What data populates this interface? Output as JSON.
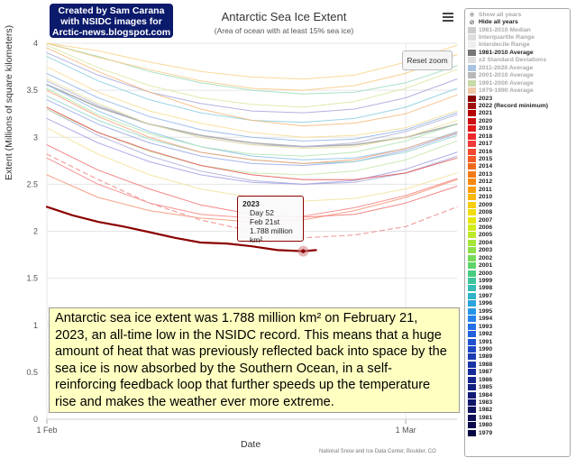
{
  "header": {
    "credit_lines": [
      "Created by Sam Carana",
      "with NSIDC images for",
      "Arctic-news.blogspot.com"
    ],
    "title": "Antarctic Sea Ice Extent",
    "subtitle": "(Area of ocean with at least 15% sea ice)",
    "menu_icon": "hamburger-menu-icon",
    "reset_zoom": "Reset zoom"
  },
  "tooltip": {
    "year": "2023",
    "day": "Day 52",
    "date": "Feb 21st",
    "value": "1.788 million km²"
  },
  "annotation": "Antarctic sea ice extent was 1.788 million km² on February 21, 2023, an all-time low in the NSIDC record. This means that a huge amount of heat that was previously reflected back into space by the sea ice is now absorbed by the Southern Ocean, in a self-reinforcing feedback loop that further speeds up the temperature rise and makes the weather ever more extreme.",
  "source": "National Snow and Ice Data Center, Boulder, CO",
  "legend": {
    "items": [
      {
        "label": "Show all years",
        "icon": "eye-icon",
        "color": "#aaaaaa",
        "dim": true
      },
      {
        "label": "Hide all years",
        "icon": "eye-slash-icon",
        "color": "#222222",
        "dim": false
      },
      {
        "label": "1981-2010 Median",
        "color": "#cccccc",
        "dim": true
      },
      {
        "label": "Interquartile Range",
        "color": "#dddddd",
        "dim": true
      },
      {
        "label": "Interdecile Range",
        "color": "#eeeeee",
        "dim": true
      },
      {
        "label": "1981-2010 Average",
        "color": "#777777",
        "dim": false
      },
      {
        "label": "±2 Standard Deviations",
        "color": "#dddddd",
        "dim": true
      },
      {
        "label": "2011-2020 Average",
        "color": "#a9c4e0",
        "dim": true
      },
      {
        "label": "2001-2010 Average",
        "color": "#b9b9b9",
        "dim": true
      },
      {
        "label": "1991-2000 Average",
        "color": "#c9d9a9",
        "dim": true
      },
      {
        "label": "1979-1990 Average",
        "color": "#f0c8a8",
        "dim": true
      },
      {
        "label": "2023",
        "color": "#8b0000",
        "dim": false
      },
      {
        "label": "2022 (Record minimum)",
        "color": "#9e1010",
        "dim": false
      },
      {
        "label": "2021",
        "color": "#b40000",
        "dim": false
      },
      {
        "label": "2020",
        "color": "#cc1010",
        "dim": false
      },
      {
        "label": "2019",
        "color": "#e01818",
        "dim": false
      },
      {
        "label": "2018",
        "color": "#ee2a2a",
        "dim": false
      },
      {
        "label": "2017",
        "color": "#f23a3a",
        "dim": false
      },
      {
        "label": "2016",
        "color": "#f24a30",
        "dim": false
      },
      {
        "label": "2015",
        "color": "#f25a28",
        "dim": false
      },
      {
        "label": "2014",
        "color": "#f26a20",
        "dim": false
      },
      {
        "label": "2013",
        "color": "#f47a18",
        "dim": false
      },
      {
        "label": "2012",
        "color": "#f68a10",
        "dim": false
      },
      {
        "label": "2011",
        "color": "#f8a010",
        "dim": false
      },
      {
        "label": "2010",
        "color": "#f8b810",
        "dim": false
      },
      {
        "label": "2009",
        "color": "#f8cc10",
        "dim": false
      },
      {
        "label": "2008",
        "color": "#f0dc10",
        "dim": false
      },
      {
        "label": "2007",
        "color": "#e6e810",
        "dim": false
      },
      {
        "label": "2006",
        "color": "#d2ec1a",
        "dim": false
      },
      {
        "label": "2005",
        "color": "#bcea2a",
        "dim": false
      },
      {
        "label": "2004",
        "color": "#a6e63a",
        "dim": false
      },
      {
        "label": "2003",
        "color": "#8ee04a",
        "dim": false
      },
      {
        "label": "2002",
        "color": "#76da5a",
        "dim": false
      },
      {
        "label": "2001",
        "color": "#5ed46a",
        "dim": false
      },
      {
        "label": "2000",
        "color": "#48cc80",
        "dim": false
      },
      {
        "label": "1999",
        "color": "#3ec49a",
        "dim": false
      },
      {
        "label": "1998",
        "color": "#36bcb2",
        "dim": false
      },
      {
        "label": "1997",
        "color": "#30b2c8",
        "dim": false
      },
      {
        "label": "1996",
        "color": "#2aa4dc",
        "dim": false
      },
      {
        "label": "1995",
        "color": "#2894e8",
        "dim": false
      },
      {
        "label": "1994",
        "color": "#2682ea",
        "dim": false
      },
      {
        "label": "1993",
        "color": "#2470e4",
        "dim": false
      },
      {
        "label": "1992",
        "color": "#2260dc",
        "dim": false
      },
      {
        "label": "1991",
        "color": "#2052d0",
        "dim": false
      },
      {
        "label": "1990",
        "color": "#1e46c2",
        "dim": false
      },
      {
        "label": "1989",
        "color": "#1c3cb4",
        "dim": false
      },
      {
        "label": "1988",
        "color": "#1a34a6",
        "dim": false
      },
      {
        "label": "1987",
        "color": "#182c98",
        "dim": false
      },
      {
        "label": "1986",
        "color": "#16268c",
        "dim": false
      },
      {
        "label": "1985",
        "color": "#142080",
        "dim": false
      },
      {
        "label": "1984",
        "color": "#121a74",
        "dim": false
      },
      {
        "label": "1983",
        "color": "#10166a",
        "dim": false
      },
      {
        "label": "1982",
        "color": "#0e1260",
        "dim": false
      },
      {
        "label": "1981",
        "color": "#0c0e56",
        "dim": false
      },
      {
        "label": "1980",
        "color": "#0a0a4c",
        "dim": false
      },
      {
        "label": "1979",
        "color": "#080842",
        "dim": false
      }
    ]
  },
  "chart_data": {
    "type": "line",
    "title": "Antarctic Sea Ice Extent",
    "subtitle": "(Area of ocean with at least 15% sea ice)",
    "xlabel": "Date",
    "ylabel": "Extent (Millions of square kilometers)",
    "xlim": [
      32,
      64
    ],
    "ylim": [
      0,
      4
    ],
    "y_ticks": [
      0,
      0.5,
      1,
      1.5,
      2,
      2.5,
      3,
      3.5,
      4
    ],
    "x_ticks": [
      {
        "day": 32,
        "label": "1 Feb"
      },
      {
        "day": 60,
        "label": "1 Mar"
      }
    ],
    "grid": true,
    "legend_position": "right",
    "series": [
      {
        "name": "2023",
        "color": "#8b0000",
        "width": 2.2,
        "x": [
          32,
          34,
          36,
          38,
          40,
          42,
          44,
          46,
          48,
          50,
          52,
          53
        ],
        "values": [
          2.26,
          2.17,
          2.1,
          2.05,
          1.99,
          1.93,
          1.88,
          1.87,
          1.84,
          1.8,
          1.788,
          1.8
        ]
      },
      {
        "name": "2022 (Record minimum)",
        "color": "#f2a0a0",
        "dashed": true,
        "width": 1.2,
        "x": [
          32,
          36,
          40,
          44,
          48,
          52,
          56,
          60,
          64
        ],
        "values": [
          2.82,
          2.55,
          2.3,
          2.12,
          2.0,
          1.93,
          1.96,
          2.05,
          2.26
        ]
      },
      {
        "name": "2021",
        "color": "#e05050",
        "x": [
          32,
          36,
          40,
          44,
          48,
          52,
          56,
          60,
          64
        ],
        "values": [
          3.32,
          3.05,
          2.86,
          2.7,
          2.6,
          2.55,
          2.55,
          2.62,
          2.78
        ]
      },
      {
        "name": "2019",
        "color": "#f07070",
        "x": [
          32,
          36,
          40,
          44,
          48,
          52,
          56,
          60,
          64
        ],
        "values": [
          2.92,
          2.65,
          2.45,
          2.28,
          2.18,
          2.15,
          2.18,
          2.3,
          2.48
        ]
      },
      {
        "name": "2018",
        "color": "#f48080",
        "x": [
          32,
          36,
          40,
          44,
          48,
          52,
          56,
          60,
          64
        ],
        "values": [
          2.78,
          2.5,
          2.3,
          2.18,
          2.14,
          2.16,
          2.25,
          2.38,
          2.56
        ]
      },
      {
        "name": "2017",
        "color": "#f29070",
        "x": [
          32,
          36,
          40,
          44,
          48,
          52,
          56,
          60,
          64
        ],
        "values": [
          2.6,
          2.36,
          2.22,
          2.14,
          2.1,
          2.12,
          2.22,
          2.36,
          2.55
        ]
      },
      {
        "name": "2016",
        "color": "#f4a070",
        "x": [
          32,
          36,
          40,
          44,
          48,
          52,
          56,
          60,
          64
        ],
        "values": [
          3.5,
          3.22,
          3.0,
          2.84,
          2.76,
          2.72,
          2.76,
          2.88,
          3.05
        ]
      },
      {
        "name": "2015",
        "color": "#f6b878",
        "x": [
          32,
          36,
          40,
          44,
          48,
          52,
          56,
          60,
          64
        ],
        "values": [
          3.95,
          3.7,
          3.48,
          3.3,
          3.18,
          3.12,
          3.15,
          3.25,
          3.45
        ]
      },
      {
        "name": "2014",
        "color": "#f8c880",
        "x": [
          32,
          36,
          40,
          44,
          48,
          52,
          56,
          60,
          64
        ],
        "values": [
          4.0,
          3.85,
          3.72,
          3.6,
          3.52,
          3.5,
          3.55,
          3.68,
          3.88
        ]
      },
      {
        "name": "2013",
        "color": "#f8d488",
        "x": [
          32,
          36,
          40,
          44,
          48,
          52,
          56,
          60,
          64
        ],
        "values": [
          4.0,
          3.92,
          3.8,
          3.7,
          3.64,
          3.62,
          3.66,
          3.8,
          3.98
        ]
      },
      {
        "name": "2012",
        "color": "#f6dc90",
        "x": [
          32,
          36,
          40,
          44,
          48,
          52,
          56,
          60,
          64
        ],
        "values": [
          3.75,
          3.48,
          3.28,
          3.15,
          3.05,
          3.0,
          3.02,
          3.1,
          3.28
        ]
      },
      {
        "name": "2011",
        "color": "#f4e098",
        "x": [
          32,
          36,
          40,
          44,
          48,
          52,
          56,
          60,
          64
        ],
        "values": [
          3.1,
          2.82,
          2.6,
          2.45,
          2.36,
          2.32,
          2.35,
          2.45,
          2.62
        ]
      },
      {
        "name": "2010",
        "color": "#eae4a0",
        "x": [
          32,
          36,
          40,
          44,
          48,
          52,
          56,
          60,
          64
        ],
        "values": [
          3.62,
          3.36,
          3.14,
          3.0,
          2.92,
          2.88,
          2.9,
          3.0,
          3.18
        ]
      },
      {
        "name": "2008",
        "color": "#d8e8a0",
        "x": [
          32,
          36,
          40,
          44,
          48,
          52,
          56,
          60,
          64
        ],
        "values": [
          3.98,
          3.74,
          3.55,
          3.42,
          3.35,
          3.32,
          3.38,
          3.52,
          3.72
        ]
      },
      {
        "name": "2007",
        "color": "#c6e8a8",
        "x": [
          32,
          36,
          40,
          44,
          48,
          52,
          56,
          60,
          64
        ],
        "values": [
          3.3,
          3.05,
          2.85,
          2.7,
          2.62,
          2.6,
          2.64,
          2.76,
          2.96
        ]
      },
      {
        "name": "2005",
        "color": "#b0e4b0",
        "x": [
          32,
          36,
          40,
          44,
          48,
          52,
          56,
          60,
          64
        ],
        "values": [
          3.52,
          3.24,
          3.04,
          2.9,
          2.82,
          2.8,
          2.84,
          2.96,
          3.14
        ]
      },
      {
        "name": "2003",
        "color": "#9adcbc",
        "x": [
          32,
          36,
          40,
          44,
          48,
          52,
          56,
          60,
          64
        ],
        "values": [
          4.0,
          3.86,
          3.7,
          3.58,
          3.5,
          3.46,
          3.48,
          3.58,
          3.76
        ]
      },
      {
        "name": "2001",
        "color": "#8ed4c8",
        "x": [
          32,
          36,
          40,
          44,
          48,
          52,
          56,
          60,
          64
        ],
        "values": [
          3.44,
          3.18,
          2.98,
          2.84,
          2.76,
          2.72,
          2.74,
          2.84,
          3.02
        ]
      },
      {
        "name": "1999",
        "color": "#88cce0",
        "x": [
          32,
          36,
          40,
          44,
          48,
          52,
          56,
          60,
          64
        ],
        "values": [
          3.86,
          3.6,
          3.4,
          3.26,
          3.18,
          3.16,
          3.2,
          3.32,
          3.52
        ]
      },
      {
        "name": "1997",
        "color": "#88c0ea",
        "x": [
          32,
          36,
          40,
          44,
          48,
          52,
          56,
          60,
          64
        ],
        "values": [
          3.56,
          3.28,
          3.06,
          2.9,
          2.8,
          2.76,
          2.78,
          2.88,
          3.06
        ]
      },
      {
        "name": "1995",
        "color": "#90b4ec",
        "x": [
          32,
          36,
          40,
          44,
          48,
          52,
          56,
          60,
          64
        ],
        "values": [
          3.68,
          3.42,
          3.22,
          3.08,
          3.0,
          2.96,
          2.98,
          3.08,
          3.26
        ]
      },
      {
        "name": "1993",
        "color": "#98a8e8",
        "x": [
          32,
          36,
          40,
          44,
          48,
          52,
          56,
          60,
          64
        ],
        "values": [
          3.4,
          3.14,
          2.94,
          2.8,
          2.72,
          2.7,
          2.74,
          2.86,
          3.04
        ]
      },
      {
        "name": "1991",
        "color": "#a09ee4",
        "x": [
          32,
          36,
          40,
          44,
          48,
          52,
          56,
          60,
          64
        ],
        "values": [
          3.2,
          2.94,
          2.74,
          2.6,
          2.52,
          2.5,
          2.54,
          2.66,
          2.84
        ]
      },
      {
        "name": "1989",
        "color": "#a4a4dc",
        "x": [
          32,
          36,
          40,
          44,
          48,
          52,
          56,
          60,
          64
        ],
        "values": [
          3.9,
          3.66,
          3.48,
          3.36,
          3.28,
          3.26,
          3.3,
          3.42,
          3.62
        ]
      },
      {
        "name": "1986",
        "color": "#aaaad8",
        "x": [
          32,
          36,
          40,
          44,
          48,
          52,
          56,
          60,
          64
        ],
        "values": [
          3.3,
          3.02,
          2.8,
          2.64,
          2.54,
          2.5,
          2.52,
          2.62,
          2.8
        ]
      },
      {
        "name": "1981",
        "color": "#b0b0d8",
        "x": [
          32,
          36,
          40,
          44,
          48,
          52,
          56,
          60,
          64
        ],
        "values": [
          3.6,
          3.34,
          3.14,
          3.0,
          2.92,
          2.9,
          2.94,
          3.06,
          3.24
        ]
      },
      {
        "name": "1981-2010 Average",
        "color": "#b0b0b0",
        "width": 1.6,
        "x": [
          32,
          36,
          40,
          44,
          48,
          52,
          56,
          60,
          64
        ],
        "values": [
          3.56,
          3.32,
          3.14,
          3.02,
          2.94,
          2.9,
          2.92,
          3.0,
          3.14
        ]
      }
    ],
    "highlight": {
      "series": "2023",
      "x": 52,
      "y": 1.788,
      "color": "#d08080"
    }
  }
}
